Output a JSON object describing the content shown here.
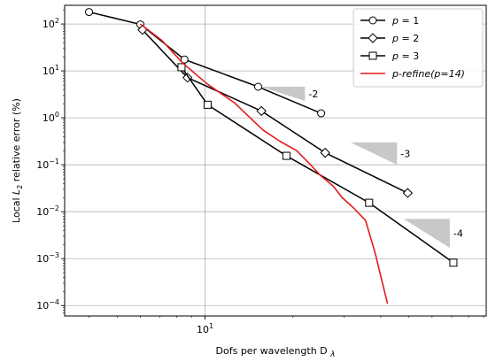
{
  "chart_data": {
    "type": "line",
    "xscale": "log",
    "yscale": "log",
    "xlim": [
      3.3,
      92
    ],
    "ylim": [
      6e-05,
      250
    ],
    "xticks": [
      {
        "value": 10,
        "base": "10",
        "exp": "1"
      }
    ],
    "yticks": [
      {
        "value": 0.0001,
        "base": "10",
        "exp": "−4"
      },
      {
        "value": 0.001,
        "base": "10",
        "exp": "−3"
      },
      {
        "value": 0.01,
        "base": "10",
        "exp": "−2"
      },
      {
        "value": 0.1,
        "base": "10",
        "exp": "−1"
      },
      {
        "value": 1,
        "base": "10",
        "exp": "0"
      },
      {
        "value": 10,
        "base": "10",
        "exp": "1"
      },
      {
        "value": 100,
        "base": "10",
        "exp": "2"
      }
    ],
    "grid": true,
    "xlabel": {
      "text": "Dofs per wavelength D",
      "sub": "λ"
    },
    "ylabel": {
      "prefix": "Local ",
      "main": "L",
      "sub": "2",
      "suffix": " relative error (%)"
    },
    "legend_position": "top-right",
    "series": [
      {
        "name": "p = 1",
        "marker": "circle",
        "color": "#000000",
        "x": [
          4.0,
          6.0,
          8.5,
          15.2,
          25.0
        ],
        "y": [
          180,
          98,
          17.5,
          4.6,
          1.25
        ]
      },
      {
        "name": "p = 2",
        "marker": "diamond",
        "color": "#000000",
        "x": [
          6.1,
          8.7,
          15.6,
          25.8,
          49.5
        ],
        "y": [
          75,
          7.2,
          1.4,
          0.18,
          0.025
        ]
      },
      {
        "name": "p = 3",
        "marker": "square",
        "color": "#000000",
        "x": [
          8.3,
          10.2,
          19.0,
          36.5,
          71.0
        ],
        "y": [
          12,
          1.9,
          0.155,
          0.0155,
          0.00082
        ]
      },
      {
        "name": "p-refine(p=14)",
        "marker": "none",
        "color": "#e41a1c",
        "x": [
          6.0,
          7.1,
          8.4,
          10.2,
          12.6,
          15.8,
          18.0,
          20.6,
          23.0,
          24.8,
          27.5,
          29.5,
          32.3,
          35.5,
          38.3,
          42.2
        ],
        "y": [
          100,
          45,
          14.5,
          5.2,
          2.1,
          0.55,
          0.32,
          0.2,
          0.1,
          0.06,
          0.035,
          0.02,
          0.012,
          0.0065,
          0.0013,
          0.00011
        ]
      }
    ],
    "annotations": [
      {
        "text": "-2",
        "triangle": {
          "x1": 15.5,
          "x2": 22.0,
          "y1": 4.6,
          "y_low": 2.3
        }
      },
      {
        "text": "-3",
        "triangle": {
          "x1": 31.5,
          "x2": 45.5,
          "y1": 0.3,
          "y_low": 0.1
        }
      },
      {
        "text": "-4",
        "triangle": {
          "x1": 48.0,
          "x2": 69.0,
          "y1": 0.007,
          "y_low": 0.0017
        }
      }
    ]
  }
}
